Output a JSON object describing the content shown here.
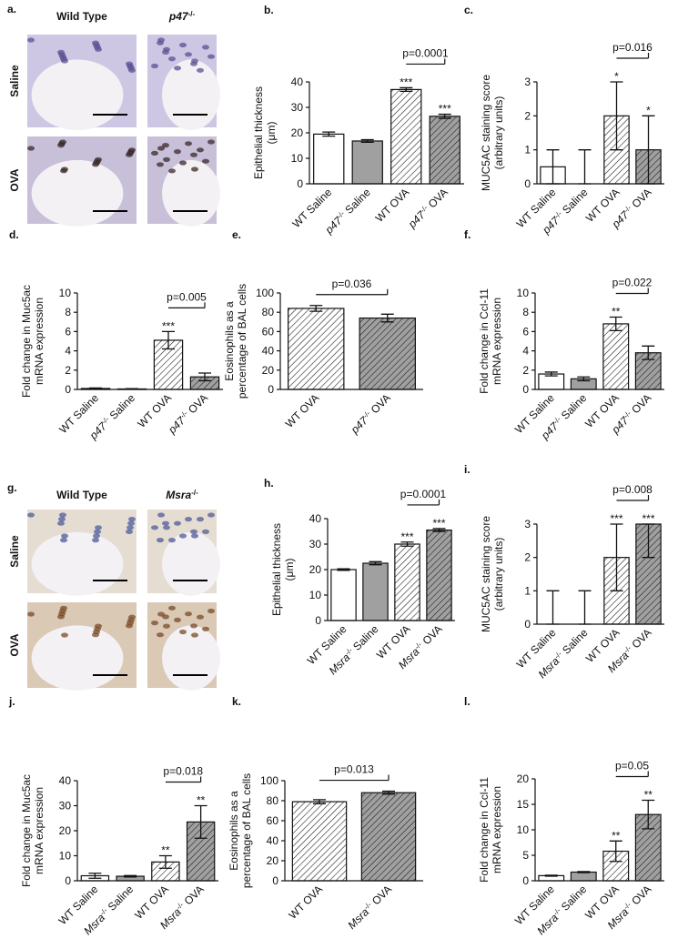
{
  "micrographs": [
    {
      "panel": "a.",
      "columns": [
        "Wild Type",
        "p47-/-"
      ],
      "rows": [
        "Saline",
        "OVA"
      ]
    },
    {
      "panel": "g.",
      "columns": [
        "Wild Type",
        "Msra-/-"
      ],
      "rows": [
        "Saline",
        "OVA"
      ]
    }
  ],
  "chart_data": [
    {
      "type": "bar",
      "panel": "b.",
      "ylabel": [
        "Epithelial  thickness",
        "(μm)"
      ],
      "categories": [
        "WT Saline",
        "p47-/- Saline",
        "WT OVA",
        "p47-/- OVA"
      ],
      "values": [
        19.5,
        16.8,
        37,
        26.5
      ],
      "errors": [
        0.8,
        0.5,
        0.7,
        0.8
      ],
      "ylim": [
        0,
        40
      ],
      "yticks": [
        0,
        10,
        20,
        30,
        40
      ],
      "colors": [
        "#ffffff",
        "#a0a0a0",
        "#ffffff",
        "#a0a0a0"
      ],
      "hatched": [
        false,
        false,
        true,
        true
      ],
      "stars": [
        null,
        null,
        "***",
        "***"
      ],
      "bracket": {
        "label": "p=0.0001",
        "between": [
          2,
          3
        ]
      }
    },
    {
      "type": "bar",
      "panel": "c.",
      "ylabel": [
        "MUC5AC staining score",
        "(arbitrary units)"
      ],
      "categories": [
        "WT Saline",
        "p47-/- Saline",
        "WT OVA",
        "p47-/- OVA"
      ],
      "values": [
        0.5,
        0,
        2,
        1
      ],
      "error_low": [
        0,
        0,
        1,
        0
      ],
      "error_high": [
        1,
        1,
        3,
        2
      ],
      "ylim": [
        0,
        3
      ],
      "yticks": [
        0,
        1,
        2,
        3
      ],
      "colors": [
        "#ffffff",
        "#a0a0a0",
        "#ffffff",
        "#a0a0a0"
      ],
      "hatched": [
        false,
        false,
        true,
        true
      ],
      "stars": [
        null,
        null,
        "*",
        "*"
      ],
      "bracket": {
        "label": "p=0.016",
        "between": [
          2,
          3
        ]
      }
    },
    {
      "type": "bar",
      "panel": "d.",
      "ylabel": [
        "Fold change in Muc5ac",
        "mRNA expression"
      ],
      "categories": [
        "WT Saline",
        "p47-/- Saline",
        "WT OVA",
        "p47-/- OVA"
      ],
      "values": [
        0.1,
        0.05,
        5.1,
        1.3
      ],
      "errors": [
        0.05,
        0.03,
        0.9,
        0.4
      ],
      "ylim": [
        0,
        10
      ],
      "yticks": [
        0,
        2,
        4,
        6,
        8,
        10
      ],
      "colors": [
        "#ffffff",
        "#a0a0a0",
        "#ffffff",
        "#a0a0a0"
      ],
      "hatched": [
        false,
        false,
        true,
        true
      ],
      "stars": [
        null,
        null,
        "***",
        null
      ],
      "bracket": {
        "label": "p=0.005",
        "between": [
          2,
          3
        ]
      }
    },
    {
      "type": "bar",
      "panel": "e.",
      "ylabel": [
        "Eosinophils as a",
        "percentage of BAL cells"
      ],
      "categories": [
        "WT OVA",
        "p47-/- OVA"
      ],
      "values": [
        84,
        74
      ],
      "errors": [
        3,
        4
      ],
      "ylim": [
        0,
        100
      ],
      "yticks": [
        0,
        20,
        40,
        60,
        80,
        100
      ],
      "colors": [
        "#ffffff",
        "#a0a0a0"
      ],
      "hatched": [
        true,
        true
      ],
      "stars": [
        null,
        null
      ],
      "bracket": {
        "label": "p=0.036",
        "between": [
          0,
          1
        ]
      }
    },
    {
      "type": "bar",
      "panel": "f.",
      "ylabel": [
        "Fold  change in Ccl-11",
        "mRNA expression"
      ],
      "categories": [
        "WT Saline",
        "p47-/- Saline",
        "WT OVA",
        "p47-/- OVA"
      ],
      "values": [
        1.6,
        1.1,
        6.8,
        3.8
      ],
      "errors": [
        0.2,
        0.2,
        0.7,
        0.7
      ],
      "ylim": [
        0,
        10
      ],
      "yticks": [
        0,
        2,
        4,
        6,
        8,
        10
      ],
      "colors": [
        "#ffffff",
        "#a0a0a0",
        "#ffffff",
        "#a0a0a0"
      ],
      "hatched": [
        false,
        false,
        true,
        true
      ],
      "stars": [
        null,
        null,
        "**",
        null
      ],
      "bracket": {
        "label": "p=0.022",
        "between": [
          2,
          3
        ]
      }
    },
    {
      "type": "bar",
      "panel": "h.",
      "ylabel": [
        "Epithelial  thickness",
        "(μm)"
      ],
      "categories": [
        "WT Saline",
        "Msra-/- Saline",
        "WT OVA",
        "Msra-/- OVA"
      ],
      "values": [
        20,
        22.5,
        30,
        35.5
      ],
      "errors": [
        0.3,
        0.6,
        0.8,
        0.6
      ],
      "ylim": [
        0,
        40
      ],
      "yticks": [
        0,
        10,
        20,
        30,
        40
      ],
      "colors": [
        "#ffffff",
        "#a0a0a0",
        "#ffffff",
        "#a0a0a0"
      ],
      "hatched": [
        false,
        false,
        true,
        true
      ],
      "stars": [
        null,
        null,
        "***",
        "***"
      ],
      "bracket": {
        "label": "p=0.0001",
        "between": [
          2,
          3
        ]
      }
    },
    {
      "type": "bar",
      "panel": "i.",
      "ylabel": [
        "MUC5AC staining score",
        "(arbitrary units)"
      ],
      "categories": [
        "WT Saline",
        "Msra-/- Saline",
        "WT OVA",
        "Msra-/- OVA"
      ],
      "values": [
        0,
        0,
        2,
        3
      ],
      "error_low": [
        0,
        0,
        1,
        2
      ],
      "error_high": [
        1,
        1,
        3,
        3
      ],
      "ylim": [
        0,
        3
      ],
      "yticks": [
        0,
        1,
        2,
        3
      ],
      "colors": [
        "#ffffff",
        "#a0a0a0",
        "#ffffff",
        "#a0a0a0"
      ],
      "hatched": [
        false,
        false,
        true,
        true
      ],
      "stars": [
        null,
        null,
        "***",
        "***"
      ],
      "bracket": {
        "label": "p=0.008",
        "between": [
          2,
          3
        ]
      }
    },
    {
      "type": "bar",
      "panel": "j.",
      "ylabel": [
        "Fold change in Muc5ac",
        "mRNA expression"
      ],
      "categories": [
        "WT Saline",
        "Msra-/- Saline",
        "WT OVA",
        "Msra-/- OVA"
      ],
      "values": [
        2,
        1.8,
        7.5,
        23.5
      ],
      "errors": [
        1,
        0.3,
        2.5,
        6.5
      ],
      "ylim": [
        0,
        40
      ],
      "yticks": [
        0,
        10,
        20,
        30,
        40
      ],
      "colors": [
        "#ffffff",
        "#a0a0a0",
        "#ffffff",
        "#a0a0a0"
      ],
      "hatched": [
        false,
        false,
        true,
        true
      ],
      "stars": [
        null,
        null,
        "**",
        "**"
      ],
      "bracket": {
        "label": "p=0.018",
        "between": [
          2,
          3
        ]
      }
    },
    {
      "type": "bar",
      "panel": "k.",
      "ylabel": [
        "Eosinophils as a",
        "percentage of BAL cells"
      ],
      "categories": [
        "WT OVA",
        "Msra-/- OVA"
      ],
      "values": [
        79,
        88
      ],
      "errors": [
        2,
        1.5
      ],
      "ylim": [
        0,
        100
      ],
      "yticks": [
        0,
        20,
        40,
        60,
        80,
        100
      ],
      "colors": [
        "#ffffff",
        "#a0a0a0"
      ],
      "hatched": [
        true,
        true
      ],
      "stars": [
        null,
        null
      ],
      "bracket": {
        "label": "p=0.013",
        "between": [
          0,
          1
        ]
      }
    },
    {
      "type": "bar",
      "panel": "l.",
      "ylabel": [
        "Fold  change in Ccl-11",
        "mRNA expression"
      ],
      "categories": [
        "WT Saline",
        "Msra-/- Saline",
        "WT OVA",
        "Msra-/- OVA"
      ],
      "values": [
        1,
        1.7,
        5.8,
        13
      ],
      "errors": [
        0.1,
        0.1,
        2,
        2.8
      ],
      "ylim": [
        0,
        20
      ],
      "yticks": [
        0,
        5,
        10,
        15,
        20
      ],
      "colors": [
        "#ffffff",
        "#a0a0a0",
        "#ffffff",
        "#a0a0a0"
      ],
      "hatched": [
        false,
        false,
        true,
        true
      ],
      "stars": [
        null,
        null,
        "**",
        "**"
      ],
      "bracket": {
        "label": "p=0.05",
        "between": [
          2,
          3
        ]
      }
    }
  ]
}
